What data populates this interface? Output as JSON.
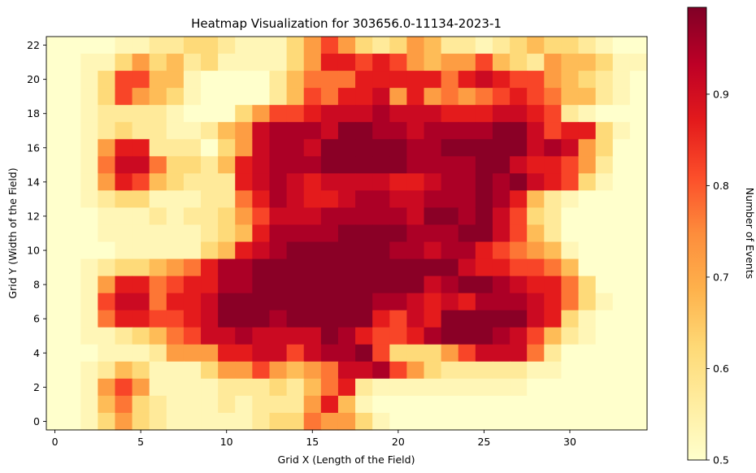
{
  "chart_data": {
    "type": "heatmap",
    "title": "Heatmap Visualization for 303656.0-11134-2023-1",
    "xlabel": "Grid X (Length of the Field)",
    "ylabel": "Grid Y (Width of the Field)",
    "colorbar_label": "Number of Events",
    "colormap": "YlOrRd",
    "value_range": [
      0.5,
      0.995
    ],
    "x_range": [
      0,
      34
    ],
    "y_range": [
      0,
      22
    ],
    "x_ticks": [
      0,
      5,
      10,
      15,
      20,
      25,
      30
    ],
    "y_ticks": [
      0,
      2,
      4,
      6,
      8,
      10,
      12,
      14,
      16,
      18,
      20,
      22
    ],
    "colorbar_ticks": [
      0.5,
      0.6,
      0.7,
      0.8,
      0.9
    ],
    "colormap_stops": [
      "#ffffcc",
      "#ffeda0",
      "#fed976",
      "#feb24c",
      "#fd8d3c",
      "#fc4e2a",
      "#e31a1c",
      "#bd0026",
      "#800026"
    ],
    "grid": false,
    "value_levels": {
      "0": 0.5,
      "1": 0.53,
      "2": 0.57,
      "3": 0.62,
      "4": 0.67,
      "5": 0.72,
      "6": 0.77,
      "7": 0.82,
      "8": 0.87,
      "9": 0.91,
      "a": 0.95,
      "b": 0.985
    },
    "rows_top_to_bottom": [
      "0000112233211135753235422123433210000",
      "0011353423111135887875455743254431100",
      "0013774410000246668888868987754321000",
      "0013754310000247688958565678764421000",
      "0012222100035778999a9998889987210000",
      "0012322112459aaa9bbaa9aaaabb9788310000",
      "0015882220359aa9bbbbbaabbbbb9a9530000",
      "0016996332489aaabbbbbaaaabb98875200000",
      "0015874322289a989999889aabab9873100000",
      "0012331112268a9889aa99aaaba8421000000",
      "0001112122357999aaaaa9bbab9732000000",
      "0001111112348aaaabbbbaaabb9742000000",
      "0000111113489abbbbbbaa9aa8765410000000",
      "0012334568aabbbbbbbbbbbb988776400000",
      "0015886788aabbbbbbbbbb9abba9886300000",
      "0017996889bbbbbbbbbaa9898aaa9863100000",
      "0016887789bbbabbbbb8798bbbbb983100000",
      "00112346799a9999ba8778abbba9742100000",
      "0001112555889979aab7333579996200000",
      "0012431113557545699a753222221100000000",
      "0015751111222324682111111111000000000",
      "0014632111212225841000000000000000000",
      "0013532111112336553100000000000000000"
    ]
  }
}
